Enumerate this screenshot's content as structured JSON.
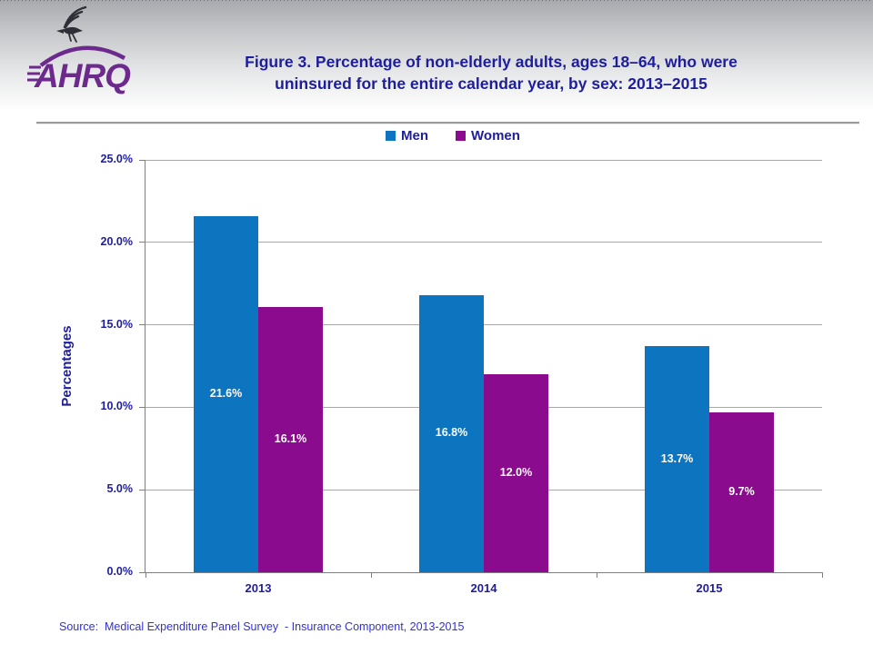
{
  "logo": {
    "brand": "AHRQ"
  },
  "header": {
    "title_line1": "Figure 3. Percentage of non-elderly adults, ages 18–64, who were",
    "title_line2": "uninsured for the entire calendar year, by sex: 2013–2015"
  },
  "source": {
    "text": "Source:  Medical Expenditure Panel Survey  - Insurance Component, 2013-2015"
  },
  "chart_data": {
    "type": "bar",
    "title": "Figure 3. Percentage of non-elderly adults, ages 18–64, who were uninsured for the entire calendar year, by sex: 2013–2015",
    "categories": [
      "2013",
      "2014",
      "2015"
    ],
    "series": [
      {
        "name": "Men",
        "color": "#0d75c0",
        "values": [
          21.6,
          16.8,
          13.7
        ],
        "data_labels": [
          "21.6%",
          "16.8%",
          "13.7%"
        ]
      },
      {
        "name": "Women",
        "color": "#8a0b8e",
        "values": [
          16.1,
          12.0,
          9.7
        ],
        "data_labels": [
          "16.1%",
          "12.0%",
          "9.7%"
        ]
      }
    ],
    "xlabel": "",
    "ylabel": "Percentages",
    "ylim": [
      0,
      25
    ],
    "yticks": [
      0,
      5,
      10,
      15,
      20,
      25
    ],
    "ytick_labels": [
      "0.0%",
      "5.0%",
      "10.0%",
      "15.0%",
      "20.0%",
      "25.0%"
    ],
    "grid": true,
    "legend_position": "top-center"
  },
  "colors": {
    "navy_text": "#1e1e9c",
    "source_text": "#3333cc",
    "men_blue": "#0d75c0",
    "women_purple": "#8a0b8e",
    "gridline": "#a8a8a8",
    "axis": "#7f7f7f",
    "logo_purple": "#6d2a8d",
    "eagle_dark": "#2e2e36"
  }
}
